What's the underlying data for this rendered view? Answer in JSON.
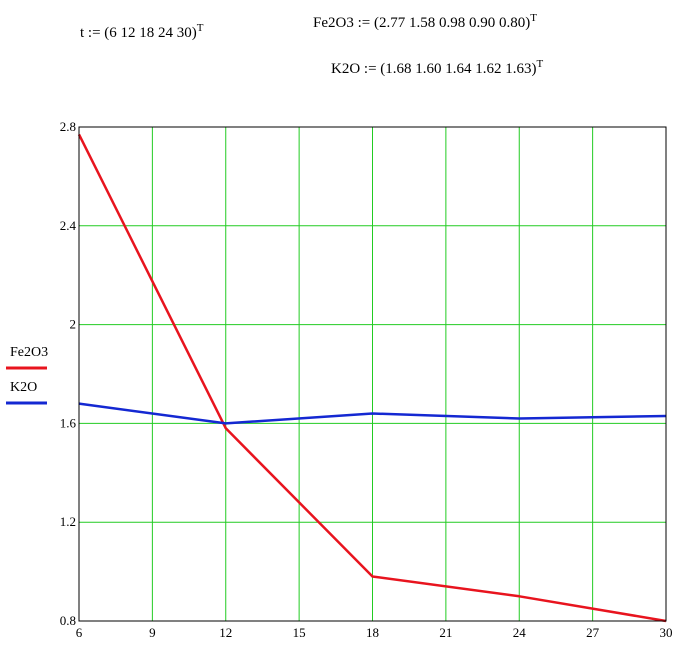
{
  "equations": {
    "t": {
      "lhs": "t := ",
      "rhs": "(6  12  18  24  30)",
      "sup": "T"
    },
    "fe2o3": {
      "lhs": "Fe2O3 := ",
      "rhs": "(2.77  1.58  0.98  0.90  0.80)",
      "sup": "T"
    },
    "k2o": {
      "lhs": "K2O := ",
      "rhs": "(1.68  1.60  1.64  1.62  1.63)",
      "sup": "T"
    }
  },
  "chart_data": {
    "type": "line",
    "title": "",
    "xlabel": "",
    "ylabel": "",
    "x": [
      6,
      12,
      18,
      24,
      30
    ],
    "xlim": [
      6,
      30
    ],
    "ylim": [
      0.8,
      2.8
    ],
    "x_ticks": [
      "6",
      "9",
      "12",
      "15",
      "18",
      "21",
      "24",
      "27",
      "30"
    ],
    "y_ticks": [
      "0.8",
      "1.2",
      "1.6",
      "2",
      "2.4",
      "2.8"
    ],
    "grid": true,
    "legend_position": "left",
    "series": [
      {
        "name": "Fe2O3",
        "color": "#e8141e",
        "values": [
          2.77,
          1.58,
          0.98,
          0.9,
          0.8
        ]
      },
      {
        "name": "K2O",
        "color": "#1428d2",
        "values": [
          1.68,
          1.6,
          1.64,
          1.62,
          1.63
        ]
      }
    ],
    "grid_color": "#22cc22"
  }
}
